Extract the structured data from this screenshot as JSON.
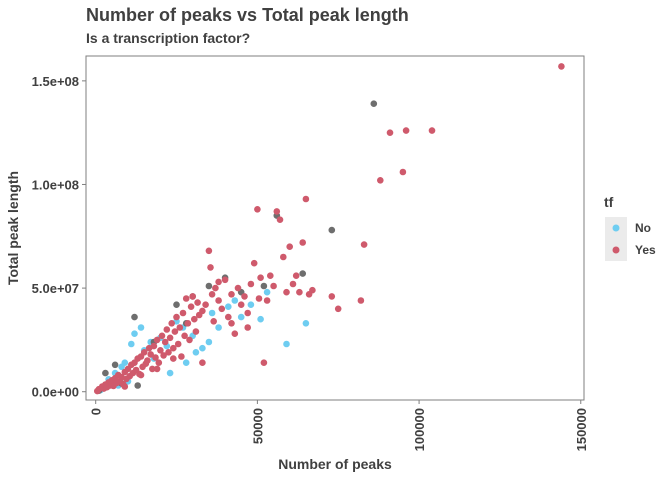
{
  "chart_data": {
    "type": "scatter",
    "title": "Number of peaks vs Total peak length",
    "subtitle": "Is a transcription factor?",
    "xlabel": "Number of peaks",
    "ylabel": "Total peak length",
    "xlim": [
      -3000,
      151000
    ],
    "ylim": [
      -4000000,
      162000000
    ],
    "x_ticks": [
      0,
      50000,
      100000,
      150000
    ],
    "x_tick_labels": [
      "0",
      "50000",
      "100000",
      "150000"
    ],
    "y_ticks": [
      0,
      50000000,
      100000000,
      150000000
    ],
    "y_tick_labels": [
      "0.0e+00",
      "5.0e+07",
      "1.0e+08",
      "1.5e+08"
    ],
    "grid": false,
    "legend": {
      "title": "tf",
      "position": "right"
    },
    "colors": {
      "No": "#6ecdf1",
      "Yes": "#cf5a6c",
      "NA": "#6e6e6e"
    },
    "series": [
      {
        "name": "No",
        "color": "#6ecdf1",
        "points": [
          [
            1500,
            800000
          ],
          [
            3000,
            2000000
          ],
          [
            5000,
            4000000
          ],
          [
            6000,
            9000000
          ],
          [
            8000,
            12000000
          ],
          [
            9000,
            14000000
          ],
          [
            11000,
            23000000
          ],
          [
            12000,
            28000000
          ],
          [
            14000,
            31000000
          ],
          [
            15000,
            20000000
          ],
          [
            17000,
            24000000
          ],
          [
            18000,
            16000000
          ],
          [
            20000,
            26000000
          ],
          [
            23000,
            9000000
          ],
          [
            25000,
            34000000
          ],
          [
            27000,
            31000000
          ],
          [
            28000,
            14000000
          ],
          [
            30000,
            27000000
          ],
          [
            31000,
            19000000
          ],
          [
            33000,
            21000000
          ],
          [
            35000,
            24000000
          ],
          [
            36000,
            38000000
          ],
          [
            38000,
            31000000
          ],
          [
            41000,
            41000000
          ],
          [
            43000,
            44000000
          ],
          [
            45000,
            36000000
          ],
          [
            48000,
            42000000
          ],
          [
            51000,
            35000000
          ],
          [
            53000,
            48000000
          ],
          [
            59000,
            23000000
          ],
          [
            65000,
            33000000
          ],
          [
            4000,
            6000000
          ],
          [
            7000,
            3000000
          ],
          [
            10000,
            5000000
          ],
          [
            22000,
            22000000
          ]
        ]
      },
      {
        "name": "Yes",
        "color": "#cf5a6c",
        "points": [
          [
            500,
            300000
          ],
          [
            1000,
            1200000
          ],
          [
            2000,
            2500000
          ],
          [
            2500,
            1500000
          ],
          [
            3000,
            3500000
          ],
          [
            3500,
            2200000
          ],
          [
            4000,
            4500000
          ],
          [
            4500,
            3000000
          ],
          [
            5000,
            5500000
          ],
          [
            5500,
            2800000
          ],
          [
            6000,
            6500000
          ],
          [
            6500,
            4200000
          ],
          [
            7000,
            8000000
          ],
          [
            7500,
            5000000
          ],
          [
            8000,
            7000000
          ],
          [
            8500,
            3600000
          ],
          [
            9000,
            9500000
          ],
          [
            9500,
            6200000
          ],
          [
            10000,
            11000000
          ],
          [
            10500,
            7500000
          ],
          [
            11000,
            13000000
          ],
          [
            11500,
            9000000
          ],
          [
            12000,
            14000000
          ],
          [
            12500,
            10500000
          ],
          [
            13000,
            16000000
          ],
          [
            13500,
            8500000
          ],
          [
            14000,
            17000000
          ],
          [
            14500,
            12000000
          ],
          [
            15000,
            19000000
          ],
          [
            15500,
            13500000
          ],
          [
            16000,
            15000000
          ],
          [
            16500,
            21000000
          ],
          [
            17000,
            18000000
          ],
          [
            17500,
            11000000
          ],
          [
            18000,
            22000000
          ],
          [
            18500,
            16500000
          ],
          [
            19000,
            25000000
          ],
          [
            19500,
            14000000
          ],
          [
            20000,
            20000000
          ],
          [
            20500,
            27000000
          ],
          [
            21000,
            17500000
          ],
          [
            21500,
            24000000
          ],
          [
            22000,
            30000000
          ],
          [
            22500,
            19000000
          ],
          [
            23000,
            26000000
          ],
          [
            23500,
            33000000
          ],
          [
            24000,
            21000000
          ],
          [
            24500,
            29000000
          ],
          [
            25000,
            36000000
          ],
          [
            25500,
            23000000
          ],
          [
            26000,
            31000000
          ],
          [
            26500,
            17000000
          ],
          [
            27000,
            38000000
          ],
          [
            27500,
            27000000
          ],
          [
            28000,
            45000000
          ],
          [
            28500,
            33000000
          ],
          [
            29000,
            25000000
          ],
          [
            29500,
            41000000
          ],
          [
            30000,
            46000000
          ],
          [
            30500,
            35000000
          ],
          [
            31000,
            29000000
          ],
          [
            31500,
            43000000
          ],
          [
            32000,
            37000000
          ],
          [
            33000,
            39000000
          ],
          [
            34000,
            42000000
          ],
          [
            35000,
            68000000
          ],
          [
            35500,
            60000000
          ],
          [
            36000,
            47000000
          ],
          [
            36500,
            34000000
          ],
          [
            37000,
            50000000
          ],
          [
            38000,
            44000000
          ],
          [
            39000,
            40000000
          ],
          [
            40000,
            54000000
          ],
          [
            41000,
            36000000
          ],
          [
            42000,
            47000000
          ],
          [
            43000,
            28000000
          ],
          [
            44000,
            50000000
          ],
          [
            45000,
            42000000
          ],
          [
            46000,
            46000000
          ],
          [
            47000,
            38000000
          ],
          [
            48000,
            52000000
          ],
          [
            49000,
            62000000
          ],
          [
            50000,
            88000000
          ],
          [
            50500,
            45000000
          ],
          [
            51000,
            55000000
          ],
          [
            52000,
            14000000
          ],
          [
            53000,
            44000000
          ],
          [
            54000,
            56000000
          ],
          [
            55000,
            51000000
          ],
          [
            56000,
            87000000
          ],
          [
            57000,
            83000000
          ],
          [
            58000,
            65000000
          ],
          [
            59000,
            48000000
          ],
          [
            60000,
            70000000
          ],
          [
            61000,
            52000000
          ],
          [
            62000,
            56000000
          ],
          [
            63000,
            48000000
          ],
          [
            64000,
            72000000
          ],
          [
            65000,
            93000000
          ],
          [
            66000,
            47000000
          ],
          [
            67000,
            49000000
          ],
          [
            73000,
            46000000
          ],
          [
            75000,
            40000000
          ],
          [
            82000,
            44000000
          ],
          [
            83000,
            71000000
          ],
          [
            88000,
            102000000
          ],
          [
            91000,
            125000000
          ],
          [
            95000,
            106000000
          ],
          [
            96000,
            126000000
          ],
          [
            104000,
            126000000
          ],
          [
            144000,
            157000000
          ],
          [
            38000,
            53000000
          ],
          [
            42000,
            33000000
          ],
          [
            47000,
            31000000
          ],
          [
            33000,
            14000000
          ],
          [
            24000,
            16000000
          ],
          [
            19000,
            11000000
          ],
          [
            14000,
            8000000
          ],
          [
            9000,
            2500000
          ]
        ]
      },
      {
        "name": "NA",
        "color": "#6e6e6e",
        "points": [
          [
            1000,
            500000
          ],
          [
            3000,
            9000000
          ],
          [
            6000,
            13000000
          ],
          [
            8000,
            4000000
          ],
          [
            12000,
            36000000
          ],
          [
            13000,
            3000000
          ],
          [
            25000,
            42000000
          ],
          [
            30000,
            46000000
          ],
          [
            35000,
            51000000
          ],
          [
            40000,
            55000000
          ],
          [
            45000,
            48000000
          ],
          [
            52000,
            51000000
          ],
          [
            56000,
            85000000
          ],
          [
            64000,
            57000000
          ],
          [
            73000,
            78000000
          ],
          [
            86000,
            139000000
          ],
          [
            18000,
            24000000
          ],
          [
            28000,
            33000000
          ]
        ]
      }
    ]
  },
  "legend_items": [
    {
      "label": "No",
      "color": "#6ecdf1"
    },
    {
      "label": "Yes",
      "color": "#cf5a6c"
    }
  ]
}
